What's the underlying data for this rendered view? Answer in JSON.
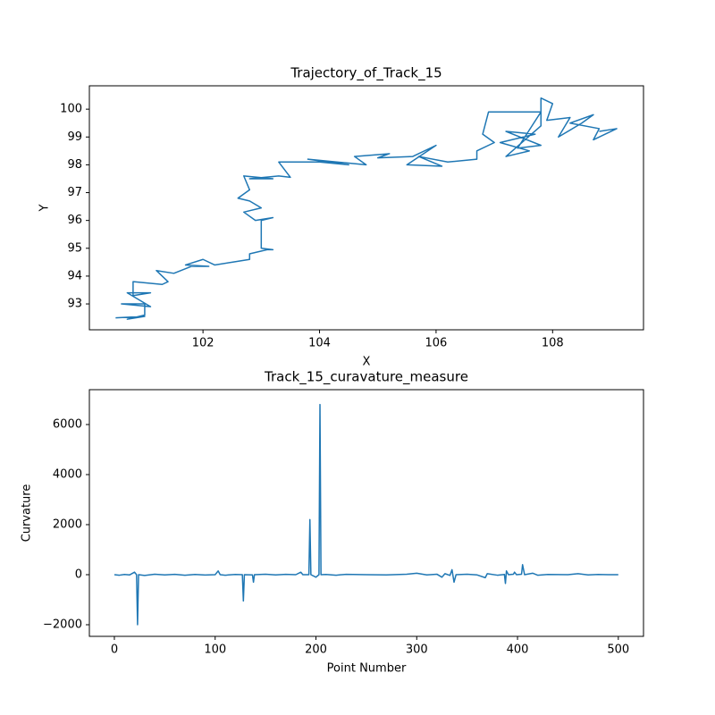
{
  "chart_data": [
    {
      "type": "line",
      "title": "Trajectory_of_Track_15",
      "xlabel": "X",
      "ylabel": "Y",
      "color": "#1f77b4",
      "grid": false,
      "xlim": [
        100.05,
        109.56
      ],
      "ylim": [
        92.07,
        100.84
      ],
      "xticks": [
        102,
        104,
        106,
        108
      ],
      "yticks": [
        93,
        94,
        95,
        96,
        97,
        98,
        99,
        100
      ],
      "x": [
        100.5,
        101.0,
        100.7,
        101.0,
        101.0,
        100.6,
        101.1,
        100.7,
        101.1,
        100.8,
        100.8,
        101.3,
        101.4,
        101.2,
        101.5,
        101.8,
        102.1,
        101.7,
        102.0,
        102.2,
        102.5,
        102.8,
        102.8,
        103.1,
        103.2,
        103.0,
        103.0,
        103.0,
        103.2,
        102.9,
        102.7,
        103.0,
        102.8,
        102.6,
        102.8,
        102.7,
        103.2,
        102.8,
        103.3,
        103.5,
        103.3,
        104.0,
        104.5,
        103.8,
        104.8,
        104.6,
        105.2,
        105.0,
        105.6,
        106.0,
        105.5,
        106.1,
        105.7,
        106.2,
        106.7,
        106.7,
        107.0,
        106.8,
        106.9,
        107.4,
        107.8,
        107.4,
        107.8,
        107.2,
        107.7,
        107.1,
        107.6,
        107.2,
        107.8,
        107.8,
        108.0,
        107.9,
        108.3,
        108.1,
        108.5,
        108.7,
        108.3,
        108.8,
        108.7,
        109.1,
        108.8
      ],
      "values": [
        92.5,
        92.55,
        92.45,
        92.6,
        93.0,
        93.0,
        92.9,
        93.4,
        93.4,
        93.3,
        93.8,
        93.7,
        93.8,
        94.2,
        94.1,
        94.35,
        94.35,
        94.4,
        94.6,
        94.4,
        94.5,
        94.6,
        94.8,
        94.95,
        94.95,
        95.0,
        95.5,
        96.0,
        96.1,
        96.0,
        96.3,
        96.45,
        96.7,
        96.8,
        97.1,
        97.6,
        97.5,
        97.5,
        97.6,
        97.55,
        98.1,
        98.1,
        98.0,
        98.2,
        98.0,
        98.3,
        98.4,
        98.25,
        98.3,
        98.7,
        98.0,
        97.95,
        98.3,
        98.1,
        98.2,
        98.5,
        98.8,
        99.1,
        99.9,
        99.9,
        99.9,
        98.6,
        98.7,
        99.2,
        99.1,
        98.8,
        98.5,
        98.3,
        99.4,
        100.4,
        100.2,
        99.6,
        99.7,
        99.0,
        99.5,
        99.8,
        99.5,
        99.3,
        98.9,
        99.3,
        99.2
      ]
    },
    {
      "type": "line",
      "title": "Track_15_curavature_measure",
      "xlabel": "Point Number",
      "ylabel": "Curvature",
      "color": "#1f77b4",
      "grid": false,
      "xlim": [
        -24.8,
        525
      ],
      "ylim": [
        -2464,
        7393
      ],
      "xticks": [
        0,
        100,
        200,
        300,
        400,
        500
      ],
      "yticks": [
        {
          "value": -2000,
          "label": "−2000"
        },
        0,
        2000,
        4000,
        6000
      ],
      "x": [
        0,
        5,
        10,
        15,
        20,
        22,
        23,
        24,
        30,
        40,
        50,
        60,
        70,
        80,
        90,
        100,
        103,
        105,
        110,
        120,
        127,
        128,
        129,
        137,
        138,
        139,
        150,
        160,
        170,
        180,
        185,
        187,
        193,
        194,
        195,
        200,
        203,
        204,
        205,
        210,
        220,
        230,
        250,
        270,
        290,
        300,
        310,
        320,
        325,
        328,
        333,
        335,
        337,
        339,
        350,
        360,
        368,
        370,
        380,
        387,
        388,
        389,
        391,
        396,
        397,
        399,
        404,
        405,
        407,
        415,
        420,
        430,
        450,
        460,
        470,
        480,
        490,
        500
      ],
      "values": [
        0,
        -20,
        10,
        -10,
        100,
        0,
        -2000,
        0,
        -30,
        20,
        -10,
        15,
        -20,
        10,
        -15,
        0,
        150,
        0,
        -20,
        10,
        0,
        -1050,
        0,
        -10,
        -300,
        0,
        20,
        -10,
        15,
        0,
        100,
        0,
        0,
        2200,
        0,
        -100,
        0,
        6800,
        0,
        10,
        -20,
        15,
        0,
        -10,
        20,
        60,
        -10,
        20,
        -100,
        40,
        -30,
        200,
        -300,
        0,
        20,
        -10,
        -120,
        40,
        -20,
        10,
        -350,
        150,
        0,
        20,
        100,
        0,
        20,
        400,
        0,
        60,
        -20,
        10,
        0,
        40,
        -10,
        10,
        0,
        0
      ]
    }
  ]
}
